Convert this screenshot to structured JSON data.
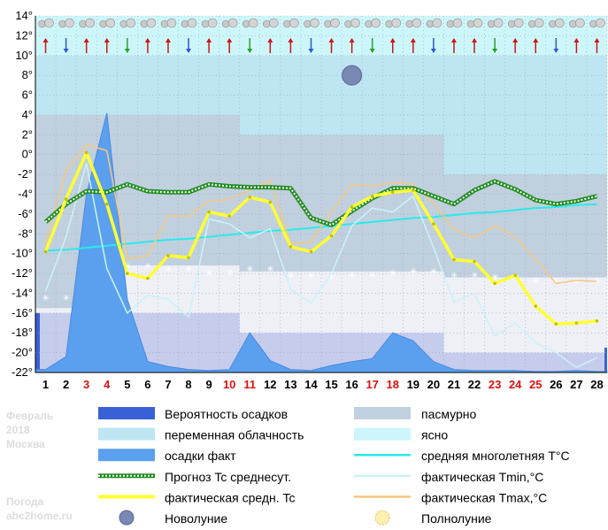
{
  "sidebar": {
    "month": "Февраль",
    "year": "2018",
    "city": "Москва",
    "site1": "Погода",
    "site2": "abc2home.ru"
  },
  "colors": {
    "overcast": "#c0d0de",
    "variable": "#bde6f2",
    "clear": "#cdf6fa",
    "precip_prob": "#3a60d8",
    "precip_fact": "#5aa0ee",
    "forecast": "#1e8c1e",
    "fact_avg": "#ffff32",
    "normal": "#2aeaea",
    "tmin": "#c8f4f8",
    "tmax": "#f7c77e"
  },
  "legend": [
    {
      "key": "precip_prob",
      "label": "Вероятность осадков",
      "icon": "rect"
    },
    {
      "key": "overcast",
      "label": "пасмурно",
      "icon": "rect"
    },
    {
      "key": "variable",
      "label": "переменная облачность",
      "icon": "rect"
    },
    {
      "key": "clear",
      "label": "ясно",
      "icon": "rect"
    },
    {
      "key": "precip_fact",
      "label": "осадки факт",
      "icon": "rect"
    },
    {
      "key": "normal",
      "label": "средняя многолетняя T°C",
      "icon": "line"
    },
    {
      "key": "forecast",
      "label": "Прогноз Tc среднесут.",
      "icon": "dots"
    },
    {
      "key": "tmin",
      "label": "фактическая Tmin,°C",
      "icon": "line"
    },
    {
      "key": "fact_avg",
      "label": "фактическая средн. Tc",
      "icon": "line"
    },
    {
      "key": "tmax",
      "label": "фактическая Tmax,°C",
      "icon": "line"
    },
    {
      "key": "newmoon",
      "label": "Новолуние",
      "icon": "newmoon"
    },
    {
      "key": "fullmoon",
      "label": "Полнолуние",
      "icon": "fullmoon"
    }
  ],
  "chart_data": {
    "type": "line",
    "ylim": [
      -22,
      14
    ],
    "yticks": [
      "14°",
      "12°",
      "10°",
      "8°",
      "6°",
      "4°",
      "2°",
      "0°",
      "-2°",
      "-4°",
      "-6°",
      "-8°",
      "-10°",
      "-12°",
      "-14°",
      "-16°",
      "-18°",
      "-20°",
      "-22°"
    ],
    "categories": [
      "1",
      "2",
      "3",
      "4",
      "5",
      "6",
      "7",
      "8",
      "9",
      "10",
      "11",
      "12",
      "13",
      "14",
      "15",
      "16",
      "17",
      "18",
      "19",
      "20",
      "21",
      "22",
      "23",
      "24",
      "25",
      "26",
      "27",
      "28"
    ],
    "red_days": [
      "3",
      "4",
      "10",
      "11",
      "17",
      "18",
      "23",
      "24",
      "25"
    ],
    "new_moon_day": 16,
    "series": [
      {
        "key": "fact_avg",
        "name": "фактическая средн. Tc",
        "values": [
          -9.8,
          -4.5,
          0.2,
          -5.0,
          -12.0,
          -12.5,
          -10.2,
          -10.4,
          -5.8,
          -6.2,
          -4.3,
          -4.8,
          -9.3,
          -9.8,
          -8.2,
          -5.3,
          -4.2,
          -3.8,
          -3.6,
          -7.0,
          -10.6,
          -10.8,
          -13.0,
          -12.2,
          -15.3,
          -17.1,
          -17.0,
          -16.8
        ]
      },
      {
        "key": "tmax",
        "name": "фактическая Tmax,°C",
        "values": [
          -9.0,
          -1.6,
          1.0,
          0.4,
          -10.5,
          -10.2,
          -6.2,
          -6.2,
          -4.7,
          -4.5,
          -3.6,
          -2.6,
          -9.0,
          -8.8,
          -5.8,
          -3.0,
          -3.2,
          -2.8,
          -3.0,
          -4.9,
          -7.6,
          -8.4,
          -7.2,
          -8.3,
          -10.6,
          -13.0,
          -12.7,
          -12.8
        ]
      },
      {
        "key": "tmin",
        "name": "фактическая Tmin,°C",
        "values": [
          -13.8,
          -8.3,
          -0.9,
          -11.5,
          -16.0,
          -14.2,
          -14.6,
          -16.4,
          -6.5,
          -7.0,
          -8.4,
          -7.5,
          -13.6,
          -15.0,
          -12.0,
          -7.2,
          -5.4,
          -5.8,
          -4.2,
          -9.4,
          -14.9,
          -14.0,
          -18.3,
          -17.0,
          -19.0,
          -20.0,
          -21.5,
          -20.5
        ]
      },
      {
        "key": "forecast",
        "name": "Прогноз Tc среднесут.",
        "values": [
          -6.8,
          -5.0,
          -3.7,
          -3.8,
          -3.0,
          -3.7,
          -3.8,
          -3.8,
          -3.0,
          -3.2,
          -3.3,
          -3.3,
          -3.4,
          -6.4,
          -7.1,
          -5.7,
          -4.4,
          -3.4,
          -3.4,
          -4.2,
          -5.0,
          -3.6,
          -2.7,
          -3.5,
          -4.6,
          -5.0,
          -4.7,
          -4.2
        ]
      },
      {
        "key": "normal",
        "name": "средняя многолетняя T°C",
        "values": [
          -9.7,
          -9.6,
          -9.4,
          -9.2,
          -9.0,
          -8.8,
          -8.6,
          -8.5,
          -8.3,
          -8.1,
          -7.9,
          -7.7,
          -7.6,
          -7.4,
          -7.2,
          -7.0,
          -6.8,
          -6.6,
          -6.4,
          -6.3,
          -6.1,
          -5.9,
          -5.8,
          -5.6,
          -5.4,
          -5.3,
          -5.1,
          -5.0
        ]
      },
      {
        "key": "precip_fact",
        "name": "осадки факт",
        "values": [
          -21.7,
          -20.4,
          -4.0,
          4.2,
          -14.6,
          -20.9,
          -21.4,
          -21.7,
          -21.8,
          -21.7,
          -18.0,
          -20.8,
          -21.7,
          -21.8,
          -21.3,
          -20.9,
          -20.6,
          -18.0,
          -18.8,
          -20.9,
          -21.7,
          -21.8,
          -21.8,
          -21.8,
          -21.9,
          -21.9,
          -21.8,
          -21.9
        ]
      }
    ]
  }
}
